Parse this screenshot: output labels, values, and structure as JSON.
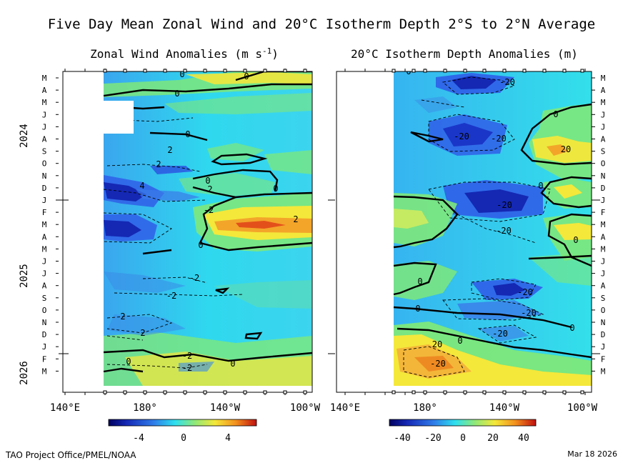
{
  "title": "Five Day Mean Zonal Wind and 20°C Isotherm Depth  2°S to 2°N Average",
  "credit": "TAO Project Office/PMEL/NOAA",
  "date": "Mar 18 2026",
  "months": [
    "M",
    "A",
    "M",
    "J",
    "J",
    "A",
    "S",
    "O",
    "N",
    "D",
    "J",
    "F",
    "M",
    "A",
    "M",
    "J",
    "J",
    "A",
    "S",
    "O",
    "N",
    "D",
    "J",
    "F",
    "M"
  ],
  "years": [
    "2024",
    "2025",
    "2026"
  ],
  "chart_data": [
    {
      "type": "heatmap",
      "title": "Zonal Wind Anomalies (m s",
      "title_sup": "-1",
      "title_close": ")",
      "x_ticks": [
        "140°E",
        "180°",
        "140°W",
        "100°W"
      ],
      "x_range": [
        "140°E",
        "95°W"
      ],
      "y_range": [
        "Mar 2024",
        "Mar 2026"
      ],
      "colorbar_ticks": [
        "-4",
        "0",
        "4"
      ],
      "colorbar_range": [
        -6,
        6
      ],
      "contour_labels": [
        "0",
        "0",
        "0",
        "0",
        "2",
        "2",
        "4",
        "2",
        "0",
        "0",
        "-2",
        "0",
        "-2",
        "-2",
        "2",
        "2",
        "0",
        "-2"
      ]
    },
    {
      "type": "heatmap",
      "title": "20°C Isotherm Depth Anomalies (m)",
      "x_ticks": [
        "140°E",
        "180°",
        "140°W",
        "100°W"
      ],
      "x_range": [
        "140°E",
        "95°W"
      ],
      "y_range": [
        "Mar 2024",
        "Mar 2026"
      ],
      "colorbar_ticks": [
        "-40",
        "-20",
        "0",
        "20",
        "40"
      ],
      "colorbar_range": [
        -50,
        50
      ],
      "contour_labels": [
        "0",
        "-20",
        "-20",
        "0",
        "-20",
        "0",
        "20",
        "0",
        "-20",
        "0",
        "-20",
        "-20",
        "-20",
        "0",
        "20",
        "-20",
        "-20"
      ]
    }
  ],
  "colors": {
    "blue_dark": "#1428b4",
    "blue": "#2f5ee8",
    "cyan_light": "#40c8f0",
    "cyan": "#2ee0ee",
    "green": "#7ee87a",
    "yellow": "#f4e83a",
    "orange": "#f39a1e",
    "red": "#d42010"
  }
}
